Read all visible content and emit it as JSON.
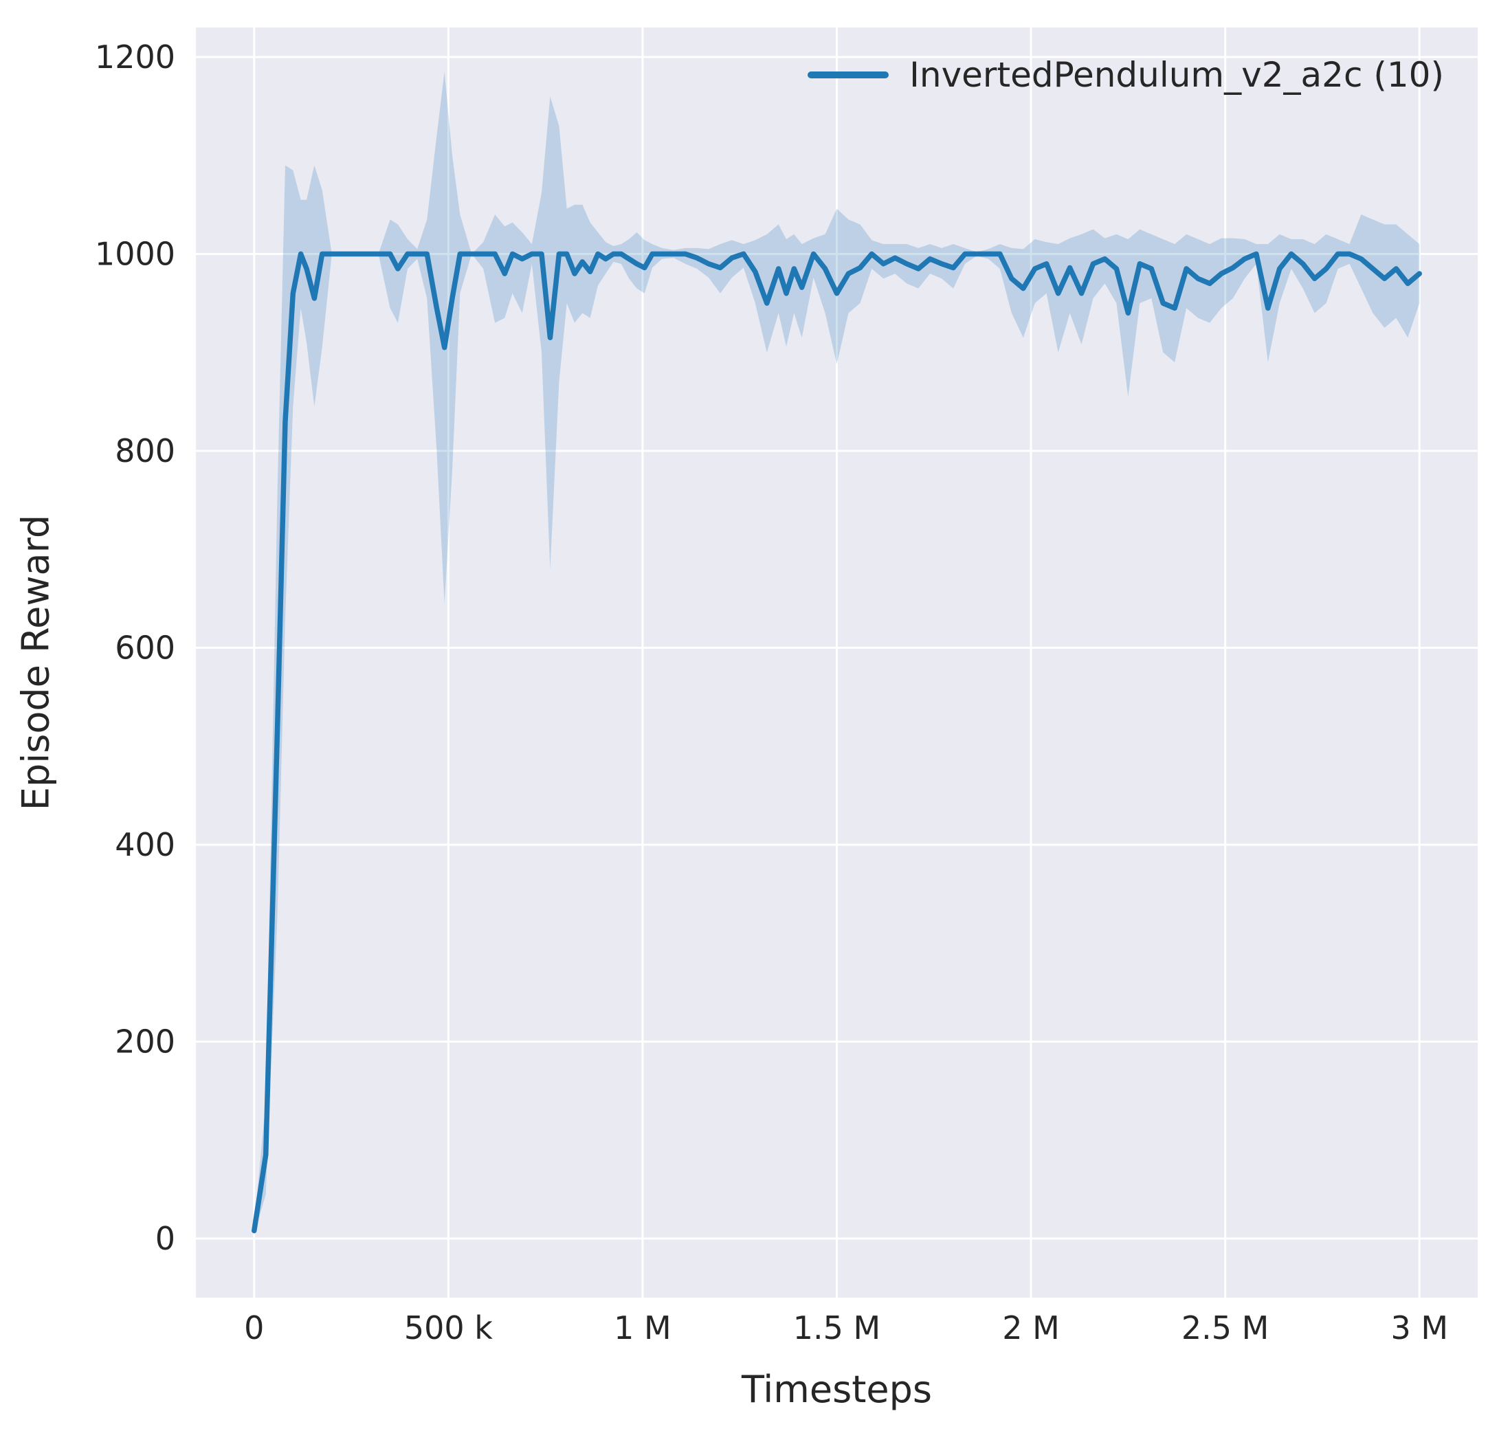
{
  "figure": {
    "background": "#ffffff",
    "plot_background": "#eaeaf2",
    "grid_color": "#ffffff",
    "text_color": "#262626"
  },
  "chart_data": {
    "type": "line",
    "title": "",
    "xlabel": "Timesteps",
    "ylabel": "Episode Reward",
    "grid": true,
    "legend_position": "upper right",
    "xlim": [
      -150000,
      3150000
    ],
    "ylim": [
      -60,
      1230
    ],
    "xticks": [
      0,
      500000,
      1000000,
      1500000,
      2000000,
      2500000,
      3000000
    ],
    "xtick_labels": [
      "0",
      "500 k",
      "1 M",
      "1.5 M",
      "2 M",
      "2.5 M",
      "3 M"
    ],
    "yticks": [
      0,
      200,
      400,
      600,
      800,
      1000,
      1200
    ],
    "ytick_labels": [
      "0",
      "200",
      "400",
      "600",
      "800",
      "1000",
      "1200"
    ],
    "series": [
      {
        "name": "InvertedPendulum_v2_a2c (10)",
        "color": "#1f77b4",
        "band_opacity": 0.22,
        "x": [
          0,
          30000,
          60000,
          80000,
          100000,
          120000,
          135000,
          155000,
          175000,
          200000,
          230000,
          260000,
          290000,
          320000,
          350000,
          370000,
          395000,
          420000,
          445000,
          470000,
          490000,
          510000,
          530000,
          560000,
          590000,
          620000,
          645000,
          665000,
          690000,
          715000,
          740000,
          762000,
          785000,
          805000,
          825000,
          845000,
          865000,
          885000,
          905000,
          925000,
          945000,
          965000,
          985000,
          1005000,
          1025000,
          1050000,
          1080000,
          1110000,
          1140000,
          1170000,
          1200000,
          1230000,
          1260000,
          1290000,
          1320000,
          1350000,
          1370000,
          1390000,
          1410000,
          1440000,
          1470000,
          1500000,
          1530000,
          1560000,
          1590000,
          1620000,
          1650000,
          1680000,
          1710000,
          1740000,
          1770000,
          1800000,
          1830000,
          1860000,
          1890000,
          1920000,
          1950000,
          1980000,
          2010000,
          2040000,
          2070000,
          2100000,
          2130000,
          2160000,
          2190000,
          2220000,
          2250000,
          2280000,
          2310000,
          2340000,
          2370000,
          2400000,
          2430000,
          2460000,
          2490000,
          2520000,
          2550000,
          2580000,
          2610000,
          2640000,
          2670000,
          2700000,
          2730000,
          2760000,
          2790000,
          2820000,
          2850000,
          2880000,
          2910000,
          2940000,
          2970000,
          3000000
        ],
        "mean": [
          8,
          85,
          520,
          830,
          960,
          1000,
          985,
          955,
          1000,
          1000,
          1000,
          1000,
          1000,
          1000,
          1000,
          985,
          1000,
          1000,
          1000,
          945,
          905,
          955,
          1000,
          1000,
          1000,
          1000,
          980,
          1000,
          995,
          1000,
          1000,
          915,
          1000,
          1000,
          980,
          992,
          982,
          1000,
          995,
          1000,
          1000,
          995,
          990,
          986,
          1000,
          1000,
          1000,
          1000,
          996,
          990,
          986,
          996,
          1000,
          982,
          950,
          985,
          960,
          985,
          966,
          1000,
          985,
          960,
          980,
          986,
          1000,
          990,
          996,
          990,
          985,
          995,
          990,
          986,
          1000,
          1000,
          1000,
          1000,
          975,
          965,
          985,
          990,
          960,
          986,
          960,
          990,
          995,
          985,
          940,
          990,
          985,
          950,
          945,
          985,
          975,
          970,
          980,
          986,
          995,
          1000,
          945,
          985,
          1000,
          990,
          975,
          985,
          1000,
          1000,
          995,
          985,
          975,
          985,
          970,
          980
        ],
        "lower": [
          4,
          45,
          330,
          630,
          845,
          945,
          910,
          845,
          905,
          1000,
          1000,
          1000,
          1000,
          1000,
          945,
          930,
          985,
          995,
          955,
          800,
          645,
          780,
          960,
          1000,
          985,
          930,
          935,
          960,
          940,
          990,
          900,
          680,
          870,
          950,
          930,
          940,
          935,
          968,
          980,
          992,
          990,
          975,
          965,
          960,
          986,
          995,
          996,
          990,
          985,
          976,
          960,
          976,
          986,
          950,
          900,
          940,
          906,
          940,
          915,
          976,
          940,
          888,
          940,
          950,
          985,
          975,
          980,
          970,
          965,
          980,
          975,
          965,
          990,
          998,
          995,
          985,
          940,
          915,
          950,
          960,
          900,
          940,
          908,
          955,
          970,
          950,
          855,
          950,
          955,
          900,
          890,
          945,
          935,
          930,
          945,
          955,
          975,
          990,
          890,
          950,
          985,
          965,
          940,
          950,
          985,
          990,
          965,
          940,
          925,
          935,
          915,
          950
        ],
        "upper": [
          12,
          140,
          760,
          1090,
          1085,
          1055,
          1055,
          1090,
          1065,
          1000,
          1000,
          1000,
          1000,
          1000,
          1035,
          1030,
          1015,
          1005,
          1035,
          1120,
          1185,
          1100,
          1040,
          1000,
          1012,
          1040,
          1028,
          1032,
          1022,
          1010,
          1062,
          1160,
          1130,
          1046,
          1050,
          1050,
          1032,
          1022,
          1012,
          1008,
          1010,
          1015,
          1022,
          1014,
          1010,
          1006,
          1004,
          1006,
          1006,
          1005,
          1010,
          1014,
          1010,
          1014,
          1020,
          1030,
          1015,
          1020,
          1010,
          1016,
          1020,
          1046,
          1035,
          1030,
          1014,
          1010,
          1010,
          1010,
          1006,
          1010,
          1006,
          1010,
          1006,
          1002,
          1005,
          1010,
          1006,
          1005,
          1015,
          1012,
          1010,
          1016,
          1020,
          1025,
          1016,
          1020,
          1015,
          1025,
          1020,
          1015,
          1010,
          1020,
          1015,
          1010,
          1016,
          1016,
          1015,
          1010,
          1010,
          1020,
          1015,
          1015,
          1010,
          1020,
          1015,
          1010,
          1040,
          1035,
          1030,
          1030,
          1020,
          1010
        ]
      }
    ]
  }
}
